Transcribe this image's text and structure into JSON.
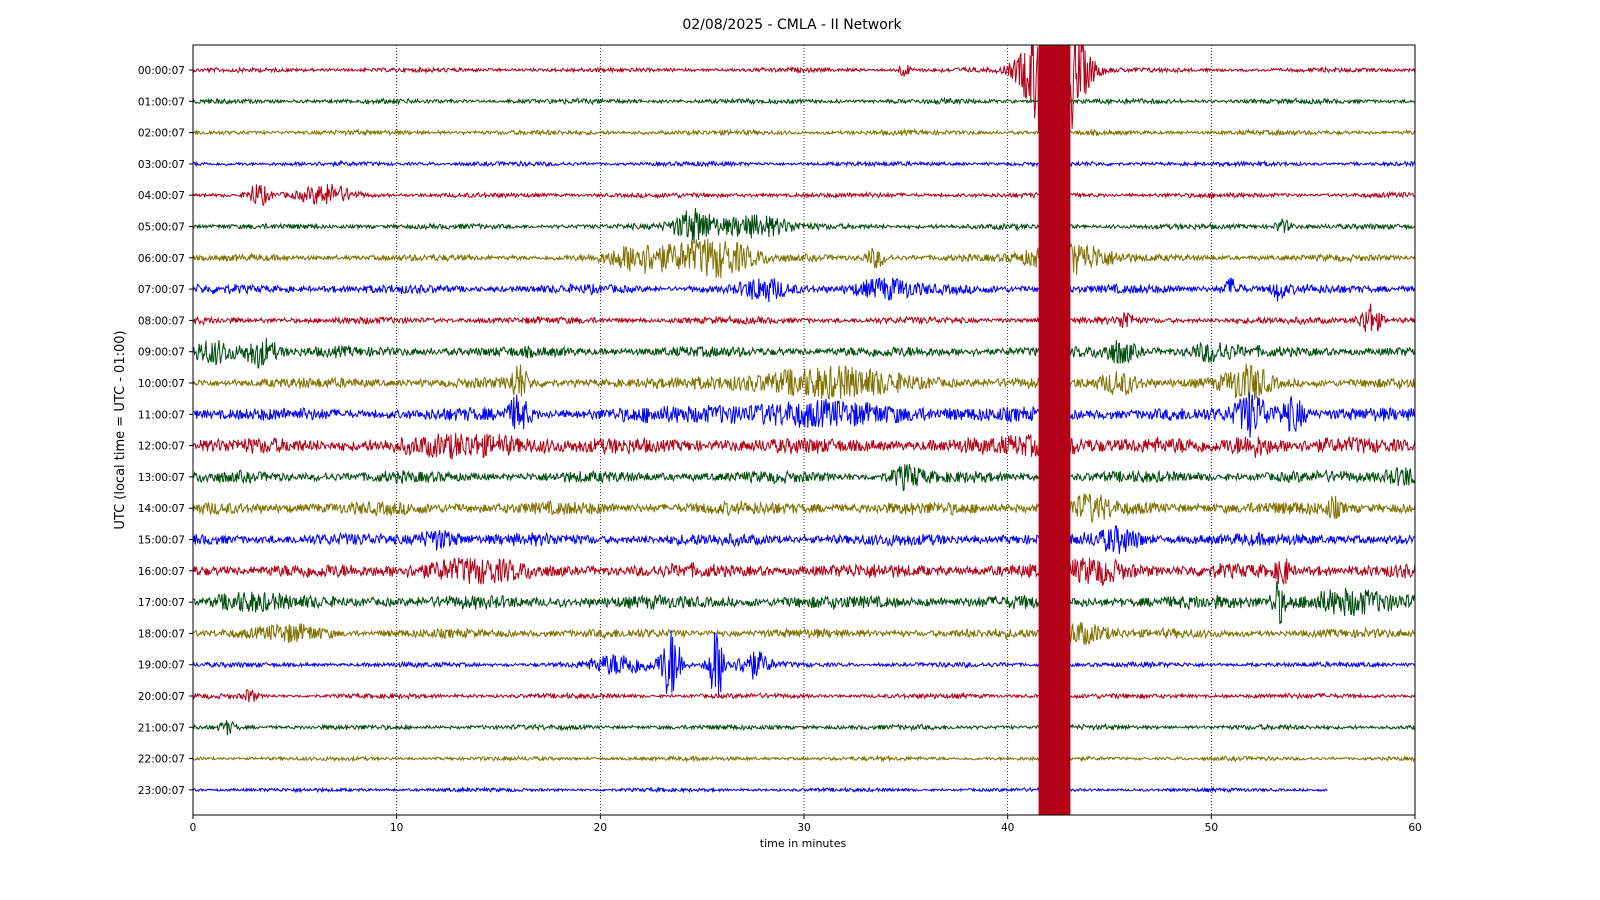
{
  "chart_data": {
    "type": "line",
    "title": "02/08/2025 - CMLA - II Network",
    "xlabel": "time in minutes",
    "ylabel": "UTC (local time = UTC - 01:00)",
    "xlim": [
      0,
      60
    ],
    "xticks": [
      0,
      10,
      20,
      30,
      40,
      50,
      60
    ],
    "grid": "vertical dotted",
    "trace_colors": [
      "#b30016",
      "#004c0f",
      "#7f7100",
      "#0000ff"
    ],
    "series": [
      {
        "name": "00:00:07",
        "noise": 0.55,
        "bursts": [
          {
            "t": 34.9,
            "w": 0.3,
            "a": 2
          },
          {
            "t": 42.3,
            "w": 1.3,
            "a": 30
          }
        ]
      },
      {
        "name": "01:00:07",
        "noise": 0.6,
        "bursts": []
      },
      {
        "name": "02:00:07",
        "noise": 0.6,
        "bursts": []
      },
      {
        "name": "03:00:07",
        "noise": 0.55,
        "bursts": []
      },
      {
        "name": "04:00:07",
        "noise": 0.6,
        "bursts": [
          {
            "t": 3.2,
            "w": 0.5,
            "a": 3.5
          },
          {
            "t": 6.6,
            "w": 1.2,
            "a": 3
          }
        ]
      },
      {
        "name": "05:00:07",
        "noise": 0.65,
        "bursts": [
          {
            "t": 24.6,
            "w": 1,
            "a": 5
          },
          {
            "t": 27.5,
            "w": 1.8,
            "a": 3.5
          },
          {
            "t": 53.5,
            "w": 0.4,
            "a": 2
          }
        ]
      },
      {
        "name": "06:00:07",
        "noise": 0.8,
        "bursts": [
          {
            "t": 22,
            "w": 1.5,
            "a": 4
          },
          {
            "t": 25.5,
            "w": 2,
            "a": 6
          },
          {
            "t": 33.5,
            "w": 0.5,
            "a": 3
          },
          {
            "t": 43,
            "w": 2,
            "a": 5
          }
        ]
      },
      {
        "name": "07:00:07",
        "noise": 1.1,
        "bursts": [
          {
            "t": 28,
            "w": 1,
            "a": 3
          },
          {
            "t": 34,
            "w": 1.5,
            "a": 3
          },
          {
            "t": 51,
            "w": 0.4,
            "a": 3
          },
          {
            "t": 53.3,
            "w": 0.3,
            "a": 3
          }
        ]
      },
      {
        "name": "08:00:07",
        "noise": 0.85,
        "bursts": [
          {
            "t": 45.8,
            "w": 0.3,
            "a": 3
          },
          {
            "t": 57.8,
            "w": 0.5,
            "a": 5
          }
        ]
      },
      {
        "name": "09:00:07",
        "noise": 1.3,
        "bursts": [
          {
            "t": 1,
            "w": 1,
            "a": 3
          },
          {
            "t": 3.3,
            "w": 0.8,
            "a": 4
          },
          {
            "t": 45.5,
            "w": 0.8,
            "a": 3
          },
          {
            "t": 50,
            "w": 1,
            "a": 2.5
          }
        ]
      },
      {
        "name": "10:00:07",
        "noise": 1.3,
        "bursts": [
          {
            "t": 16,
            "w": 0.4,
            "a": 5
          },
          {
            "t": 31,
            "w": 4,
            "a": 4
          },
          {
            "t": 45.5,
            "w": 1,
            "a": 3
          },
          {
            "t": 51.8,
            "w": 1,
            "a": 5
          }
        ]
      },
      {
        "name": "11:00:07",
        "noise": 1.6,
        "bursts": [
          {
            "t": 16,
            "w": 0.5,
            "a": 5
          },
          {
            "t": 30,
            "w": 6,
            "a": 2.5
          },
          {
            "t": 52,
            "w": 0.8,
            "a": 6
          },
          {
            "t": 54,
            "w": 0.6,
            "a": 5
          }
        ]
      },
      {
        "name": "12:00:07",
        "noise": 1.9,
        "bursts": [
          {
            "t": 14,
            "w": 3,
            "a": 2
          },
          {
            "t": 42,
            "w": 2,
            "a": 2
          },
          {
            "t": 52,
            "w": 1,
            "a": 2.5
          }
        ]
      },
      {
        "name": "13:00:07",
        "noise": 1.4,
        "bursts": [
          {
            "t": 35,
            "w": 0.8,
            "a": 3
          },
          {
            "t": 59.5,
            "w": 1,
            "a": 2.5
          }
        ]
      },
      {
        "name": "14:00:07",
        "noise": 1.6,
        "bursts": [
          {
            "t": 44,
            "w": 1,
            "a": 3
          },
          {
            "t": 56,
            "w": 0.3,
            "a": 2.5
          }
        ]
      },
      {
        "name": "15:00:07",
        "noise": 1.5,
        "bursts": [
          {
            "t": 12,
            "w": 1,
            "a": 2.5
          },
          {
            "t": 45.5,
            "w": 1,
            "a": 3
          }
        ]
      },
      {
        "name": "16:00:07",
        "noise": 1.7,
        "bursts": [
          {
            "t": 13.5,
            "w": 2.5,
            "a": 2.5
          },
          {
            "t": 44.5,
            "w": 1.5,
            "a": 3
          },
          {
            "t": 53.5,
            "w": 0.3,
            "a": 4
          }
        ]
      },
      {
        "name": "17:00:07",
        "noise": 1.6,
        "bursts": [
          {
            "t": 2.5,
            "w": 1.5,
            "a": 2
          },
          {
            "t": 53.3,
            "w": 0.3,
            "a": 6
          },
          {
            "t": 56.5,
            "w": 2,
            "a": 3
          }
        ]
      },
      {
        "name": "18:00:07",
        "noise": 1.1,
        "bursts": [
          {
            "t": 5,
            "w": 1.5,
            "a": 2
          },
          {
            "t": 43.5,
            "w": 1.5,
            "a": 3
          }
        ]
      },
      {
        "name": "19:00:07",
        "noise": 0.6,
        "bursts": [
          {
            "t": 21,
            "w": 1.5,
            "a": 3
          },
          {
            "t": 23.5,
            "w": 0.5,
            "a": 11
          },
          {
            "t": 25.7,
            "w": 0.4,
            "a": 11
          },
          {
            "t": 27.5,
            "w": 0.8,
            "a": 4
          }
        ]
      },
      {
        "name": "20:00:07",
        "noise": 0.6,
        "bursts": [
          {
            "t": 2.8,
            "w": 0.3,
            "a": 2
          }
        ]
      },
      {
        "name": "21:00:07",
        "noise": 0.6,
        "bursts": [
          {
            "t": 1.7,
            "w": 0.4,
            "a": 2
          }
        ]
      },
      {
        "name": "22:00:07",
        "noise": 0.5,
        "bursts": []
      },
      {
        "name": "23:00:07",
        "noise": 0.45,
        "x_end": 55.7,
        "bursts": []
      }
    ]
  }
}
